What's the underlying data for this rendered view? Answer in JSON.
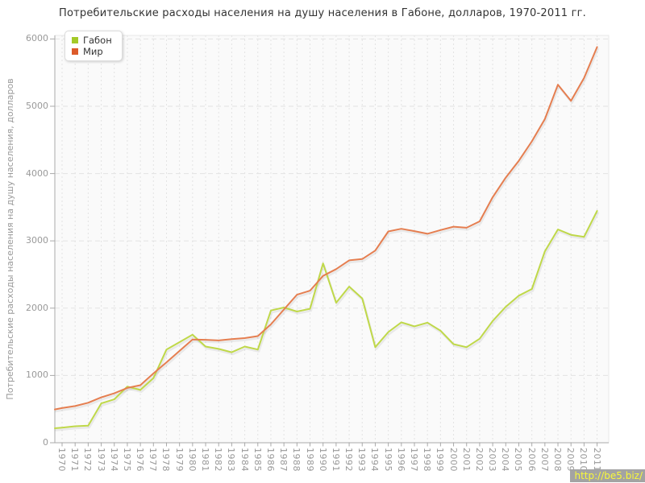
{
  "page": {
    "watermark_text": "http://be5.biz/"
  },
  "colors": {
    "title_text": "#333333",
    "axis_text": "#999999",
    "grid_line": "#e3e3e3",
    "axis_line": "#a9a9a9",
    "plot_background": "#fafafa",
    "plot_border": "#e8e8e8",
    "watermark_bg": "#a3a3a3",
    "watermark_text": "#f8f83a"
  },
  "chart_data": {
    "type": "line",
    "title": "Потребительские расходы населения на душу населения в Габоне, долларов, 1970-2011 гг.",
    "ylabel": "Потребительские расходы населения на душу населения, долларов",
    "xlabel": "",
    "ylim": [
      0,
      6000
    ],
    "yticks": [
      0,
      1000,
      2000,
      3000,
      4000,
      5000,
      6000
    ],
    "grid": true,
    "legend_position": "top-left",
    "x": [
      1970,
      1971,
      1972,
      1973,
      1974,
      1975,
      1976,
      1977,
      1978,
      1979,
      1980,
      1981,
      1982,
      1983,
      1984,
      1985,
      1986,
      1987,
      1988,
      1989,
      1990,
      1991,
      1992,
      1993,
      1994,
      1995,
      1996,
      1997,
      1998,
      1999,
      2000,
      2001,
      2002,
      2003,
      2004,
      2005,
      2006,
      2007,
      2008,
      2009,
      2010,
      2011
    ],
    "series": [
      {
        "name": "Габон",
        "line_color": "#bfd849",
        "legend_color": "#a4ca28",
        "axis_edge_value": 215,
        "values": [
          225,
          245,
          255,
          585,
          645,
          835,
          785,
          960,
          1385,
          1495,
          1605,
          1430,
          1395,
          1345,
          1430,
          1385,
          1965,
          2010,
          1950,
          1990,
          2665,
          2080,
          2320,
          2145,
          1420,
          1645,
          1790,
          1730,
          1785,
          1665,
          1465,
          1420,
          1545,
          1810,
          2020,
          2185,
          2285,
          2845,
          3170,
          3090,
          3060,
          3445
        ]
      },
      {
        "name": "Мир",
        "line_color": "#e57e50",
        "legend_color": "#dc5a2a",
        "axis_edge_value": 495,
        "values": [
          515,
          545,
          595,
          675,
          735,
          815,
          855,
          1030,
          1195,
          1365,
          1535,
          1530,
          1520,
          1540,
          1555,
          1585,
          1760,
          1980,
          2200,
          2260,
          2480,
          2580,
          2710,
          2730,
          2855,
          3140,
          3180,
          3145,
          3105,
          3160,
          3210,
          3195,
          3290,
          3650,
          3940,
          4190,
          4480,
          4810,
          5320,
          5080,
          5420,
          5880
        ]
      }
    ]
  }
}
